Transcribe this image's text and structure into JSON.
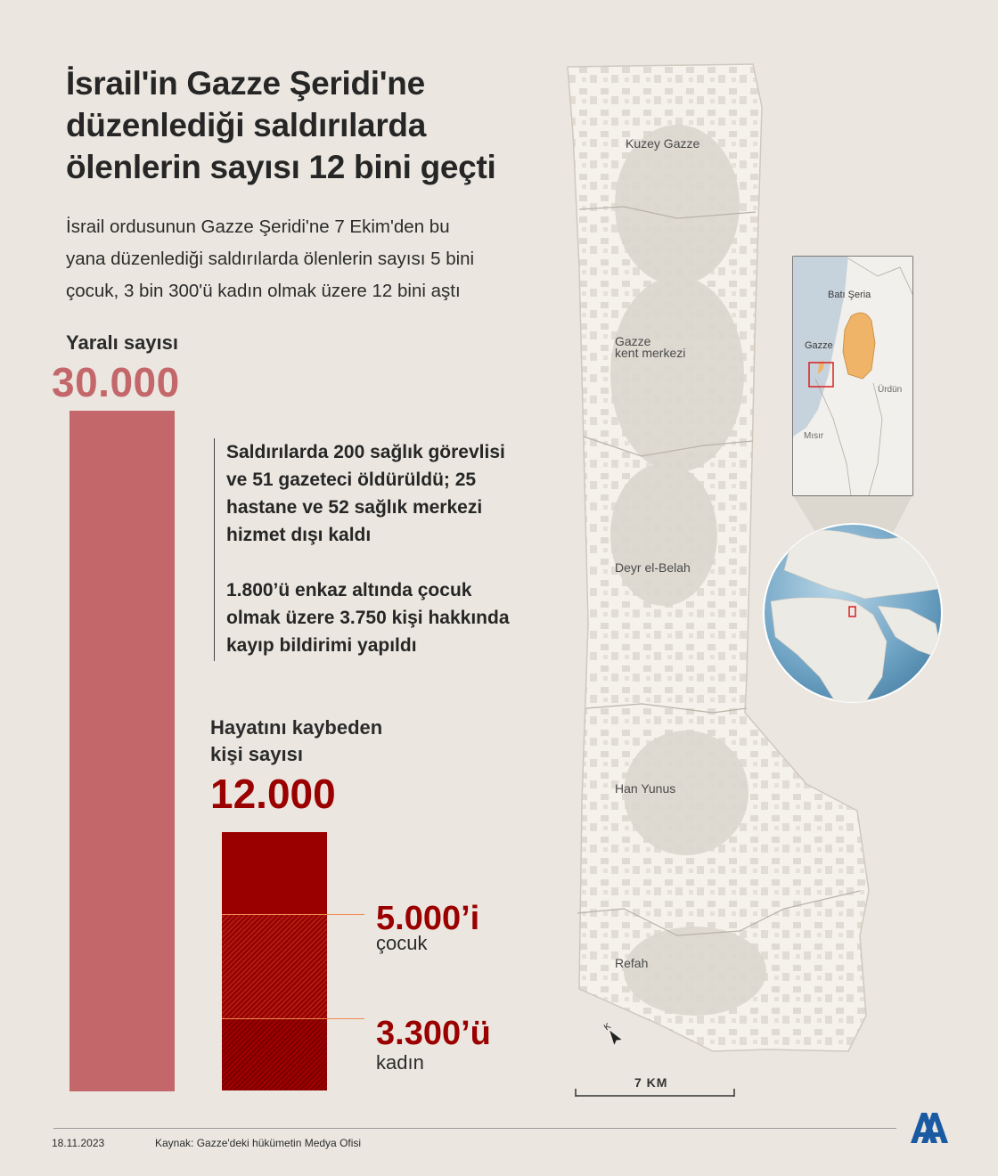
{
  "title_lines": [
    "İsrail'in Gazze Şeridi'ne",
    "düzenlediği saldırılarda",
    "ölenlerin sayısı 12 bini geçti"
  ],
  "subtitle_lines": [
    "İsrail ordusunun Gazze Şeridi'ne 7 Ekim'den bu",
    "yana düzenlediği saldırılarda ölenlerin sayısı 5 bini",
    "çocuk, 3 bin 300'ü kadın olmak üzere 12 bini aştı"
  ],
  "wounded": {
    "label": "Yaralı sayısı",
    "value_text": "30.000",
    "value": 30000
  },
  "facts": {
    "fact1_lines": [
      "Saldırılarda 200 sağlık görevlisi",
      "ve 51 gazeteci öldürüldü; 25",
      "hastane ve 52 sağlık merkezi",
      "hizmet dışı kaldı"
    ],
    "fact2_lines": [
      "1.800’ü enkaz altında çocuk",
      "olmak üzere 3.750 kişi hakkında",
      "kayıp bildirimi yapıldı"
    ]
  },
  "deaths": {
    "label_lines": [
      "Hayatını kaybeden",
      "kişi sayısı"
    ],
    "value_text": "12.000",
    "value": 12000,
    "children": {
      "value_text": "5.000’i",
      "label": "çocuk",
      "value": 5000
    },
    "women": {
      "value_text": "3.300’ü",
      "label": "kadın",
      "value": 3300
    }
  },
  "map": {
    "places": [
      "Kuzey Gazze",
      "Gazze",
      "kent merkezi",
      "Deyr el-Belah",
      "Han Yunus",
      "Refah"
    ],
    "inset_labels": {
      "west_bank": "Batı Şeria",
      "gaza": "Gazze",
      "jordan": "Ürdün",
      "egypt": "Mısır"
    },
    "scale_label": "7 KM",
    "colors": {
      "strip": "#f5f2ec",
      "urban": "#ddd8cf",
      "sea": "#c7d3dc",
      "palestine": "#f0b468",
      "highlight": "#d81e1e"
    }
  },
  "footer": {
    "date": "18.11.2023",
    "source": "Kaynak: Gazze'deki hükümetin Medya Ofisi",
    "logo": "aa-logo-icon"
  }
}
